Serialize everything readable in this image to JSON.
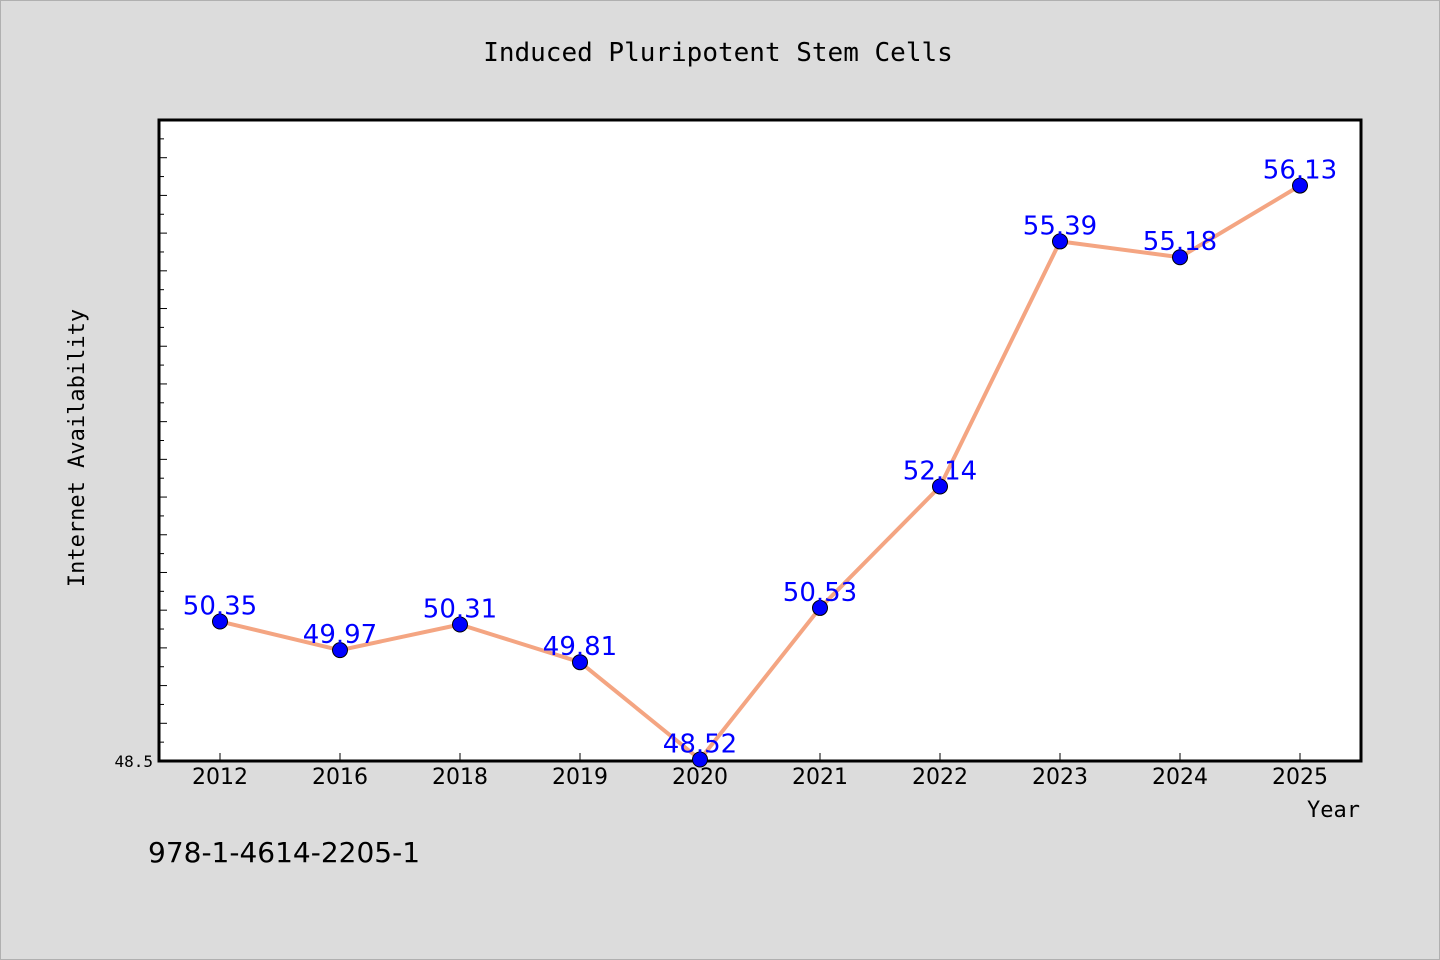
{
  "chart_data": {
    "type": "line",
    "title": "Induced Pluripotent Stem Cells",
    "xlabel": "Year",
    "ylabel": "Internet Availability",
    "categories": [
      "2012",
      "2016",
      "2018",
      "2019",
      "2020",
      "2021",
      "2022",
      "2023",
      "2024",
      "2025"
    ],
    "series": [
      {
        "values": [
          50.35,
          49.97,
          50.31,
          49.81,
          48.52,
          50.53,
          52.14,
          55.39,
          55.18,
          56.13
        ],
        "labels": [
          "50.35",
          "49.97",
          "50.31",
          "49.81",
          "48.52",
          "50.53",
          "52.14",
          "55.39",
          "55.18",
          "56.13"
        ]
      }
    ],
    "ylim": [
      48.5,
      57.0
    ],
    "yticks_labeled": [
      "48.5"
    ],
    "grid": false,
    "legend": "none",
    "colors": {
      "background": "#dcdcdc",
      "plot_area": "#ffffff",
      "line": "#f4a582",
      "marker": "#0000ff",
      "data_label": "#0000ff"
    }
  },
  "footnote": "978-1-4614-2205-1"
}
